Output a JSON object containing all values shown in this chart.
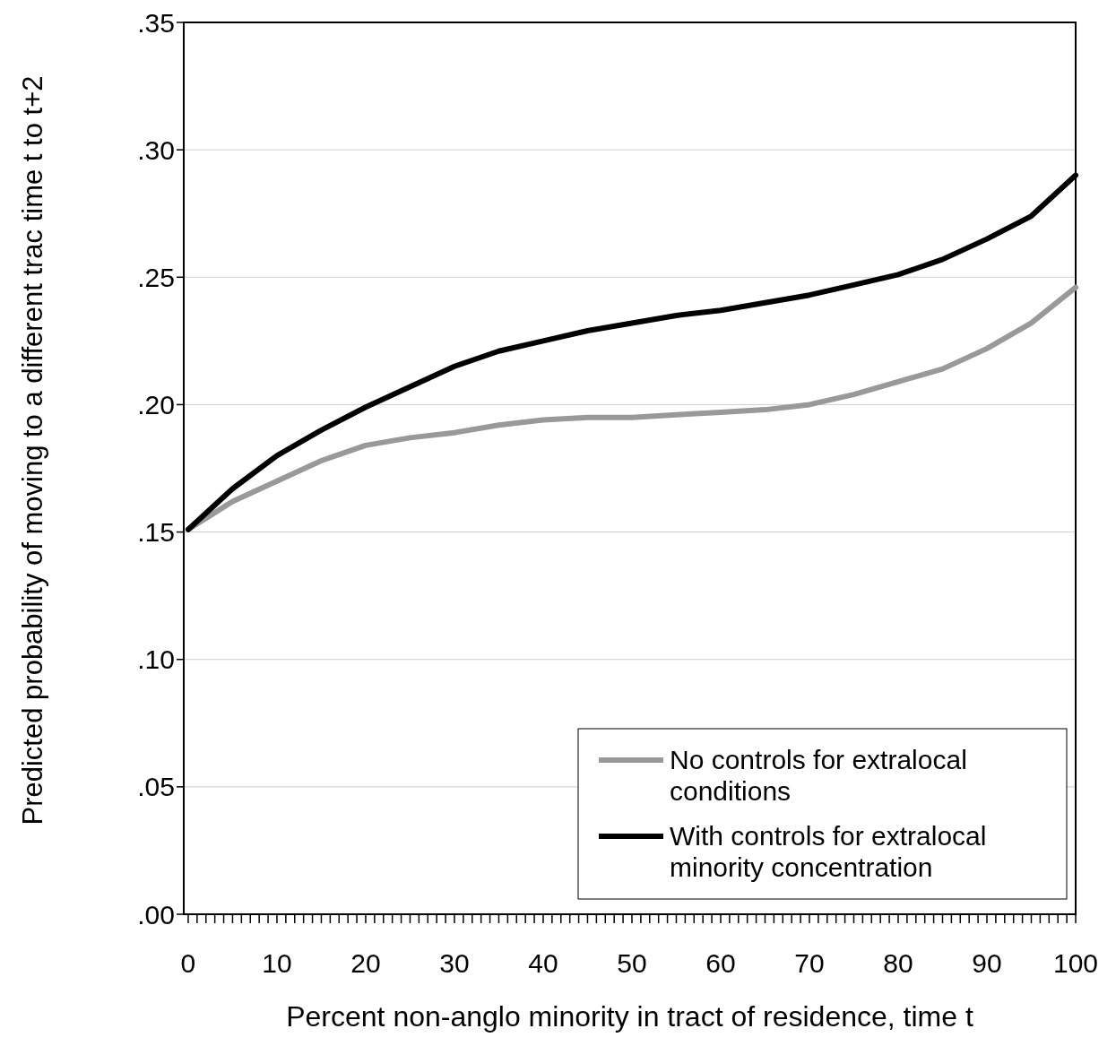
{
  "chart_data": {
    "type": "line",
    "xlabel": "Percent non-anglo minority in tract of residence, time t",
    "ylabel": "Predicted probability of moving to a different trac time t to t+2",
    "x": [
      0,
      5,
      10,
      15,
      20,
      25,
      30,
      35,
      40,
      45,
      50,
      55,
      60,
      65,
      70,
      75,
      80,
      85,
      90,
      95,
      100
    ],
    "series": [
      {
        "name": "No controls for extralocal conditions",
        "color": "#999999",
        "values": [
          0.151,
          0.162,
          0.17,
          0.178,
          0.184,
          0.187,
          0.189,
          0.192,
          0.194,
          0.195,
          0.195,
          0.196,
          0.197,
          0.198,
          0.2,
          0.204,
          0.209,
          0.214,
          0.222,
          0.232,
          0.246
        ]
      },
      {
        "name": "With controls for extralocal minority concentration",
        "color": "#000000",
        "values": [
          0.151,
          0.167,
          0.18,
          0.19,
          0.199,
          0.207,
          0.215,
          0.221,
          0.225,
          0.229,
          0.232,
          0.235,
          0.237,
          0.24,
          0.243,
          0.247,
          0.251,
          0.257,
          0.265,
          0.274,
          0.29
        ]
      }
    ],
    "xlim": [
      -0.5,
      100
    ],
    "xticks": [
      0,
      {
        "value": 1,
        "label": null
      },
      {
        "value": 2,
        "label": null
      },
      {
        "value": 3,
        "label": null
      },
      {
        "value": 4,
        "label": null
      },
      {
        "value": 5,
        "label": null
      },
      {
        "value": 6,
        "label": null
      },
      {
        "value": 7,
        "label": null
      },
      {
        "value": 8,
        "label": null
      },
      {
        "value": 9,
        "label": null
      },
      10,
      {
        "value": 11,
        "label": null
      },
      {
        "value": 12,
        "label": null
      },
      {
        "value": 13,
        "label": null
      },
      {
        "value": 14,
        "label": null
      },
      {
        "value": 15,
        "label": null
      },
      {
        "value": 16,
        "label": null
      },
      {
        "value": 17,
        "label": null
      },
      {
        "value": 18,
        "label": null
      },
      {
        "value": 19,
        "label": null
      },
      20,
      {
        "value": 21,
        "label": null
      },
      {
        "value": 22,
        "label": null
      },
      {
        "value": 23,
        "label": null
      },
      {
        "value": 24,
        "label": null
      },
      {
        "value": 25,
        "label": null
      },
      {
        "value": 26,
        "label": null
      },
      {
        "value": 27,
        "label": null
      },
      {
        "value": 28,
        "label": null
      },
      {
        "value": 29,
        "label": null
      },
      30,
      {
        "value": 31,
        "label": null
      },
      {
        "value": 32,
        "label": null
      },
      {
        "value": 33,
        "label": null
      },
      {
        "value": 34,
        "label": null
      },
      {
        "value": 35,
        "label": null
      },
      {
        "value": 36,
        "label": null
      },
      {
        "value": 37,
        "label": null
      },
      {
        "value": 38,
        "label": null
      },
      {
        "value": 39,
        "label": null
      },
      40,
      {
        "value": 41,
        "label": null
      },
      {
        "value": 42,
        "label": null
      },
      {
        "value": 43,
        "label": null
      },
      {
        "value": 44,
        "label": null
      },
      {
        "value": 45,
        "label": null
      },
      {
        "value": 46,
        "label": null
      },
      {
        "value": 47,
        "label": null
      },
      {
        "value": 48,
        "label": null
      },
      {
        "value": 49,
        "label": null
      },
      50,
      {
        "value": 51,
        "label": null
      },
      {
        "value": 52,
        "label": null
      },
      {
        "value": 53,
        "label": null
      },
      {
        "value": 54,
        "label": null
      },
      {
        "value": 55,
        "label": null
      },
      {
        "value": 56,
        "label": null
      },
      {
        "value": 57,
        "label": null
      },
      {
        "value": 58,
        "label": null
      },
      {
        "value": 59,
        "label": null
      },
      60,
      {
        "value": 61,
        "label": null
      },
      {
        "value": 62,
        "label": null
      },
      {
        "value": 63,
        "label": null
      },
      {
        "value": 64,
        "label": null
      },
      {
        "value": 65,
        "label": null
      },
      {
        "value": 66,
        "label": null
      },
      {
        "value": 67,
        "label": null
      },
      {
        "value": 68,
        "label": null
      },
      {
        "value": 69,
        "label": null
      },
      70,
      {
        "value": 71,
        "label": null
      },
      {
        "value": 72,
        "label": null
      },
      {
        "value": 73,
        "label": null
      },
      {
        "value": 74,
        "label": null
      },
      {
        "value": 75,
        "label": null
      },
      {
        "value": 76,
        "label": null
      },
      {
        "value": 77,
        "label": null
      },
      {
        "value": 78,
        "label": null
      },
      {
        "value": 79,
        "label": null
      },
      80,
      {
        "value": 81,
        "label": null
      },
      {
        "value": 82,
        "label": null
      },
      {
        "value": 83,
        "label": null
      },
      {
        "value": 84,
        "label": null
      },
      {
        "value": 85,
        "label": null
      },
      {
        "value": 86,
        "label": null
      },
      {
        "value": 87,
        "label": null
      },
      {
        "value": 88,
        "label": null
      },
      {
        "value": 89,
        "label": null
      },
      90,
      {
        "value": 91,
        "label": null
      },
      {
        "value": 92,
        "label": null
      },
      {
        "value": 93,
        "label": null
      },
      {
        "value": 94,
        "label": null
      },
      {
        "value": 95,
        "label": null
      },
      {
        "value": 96,
        "label": null
      },
      {
        "value": 97,
        "label": null
      },
      {
        "value": 98,
        "label": null
      },
      {
        "value": 99,
        "label": null
      },
      100
    ],
    "ylim": [
      0,
      0.35
    ],
    "yticks": [
      {
        "value": 0,
        "label": ".00"
      },
      {
        "value": 0.05,
        "label": ".05"
      },
      {
        "value": 0.1,
        "label": ".10"
      },
      {
        "value": 0.15,
        "label": ".15"
      },
      {
        "value": 0.2,
        "label": ".20"
      },
      {
        "value": 0.25,
        "label": ".25"
      },
      {
        "value": 0.3,
        "label": ".30"
      },
      {
        "value": 0.35,
        "label": ".35"
      }
    ],
    "grid": "y",
    "legend": "bottom right",
    "marker": "none",
    "line_style": "solid"
  }
}
